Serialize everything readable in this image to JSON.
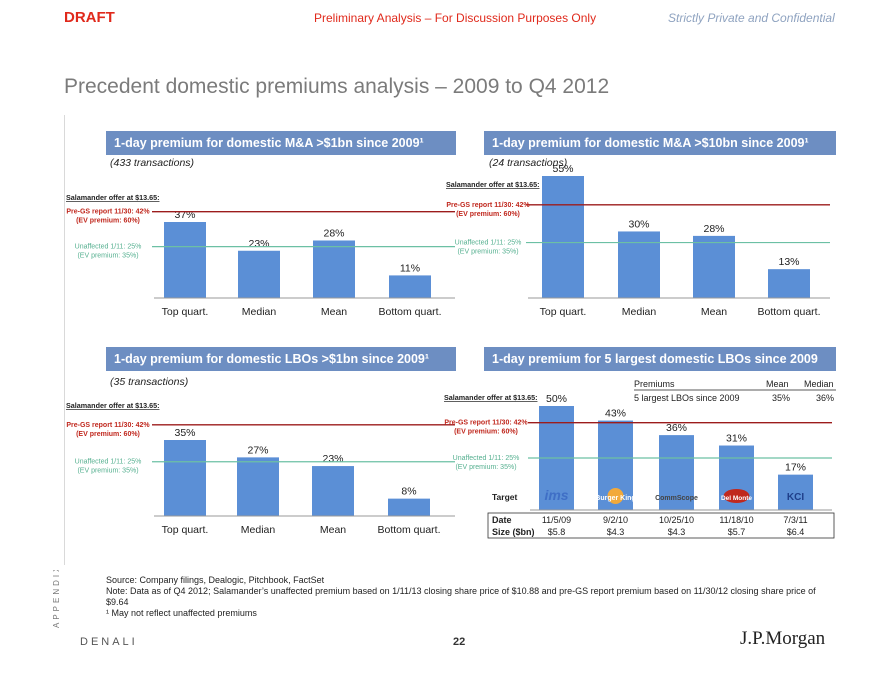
{
  "header": {
    "draft": "DRAFT",
    "prelim": "Preliminary Analysis – For Discussion Purposes Only",
    "confidential": "Strictly Private and Confidential"
  },
  "page_title": "Precedent domestic premiums analysis – 2009 to Q4 2012",
  "ref_labels": {
    "offer": "Salamander offer at $13.65:",
    "pre_gs_1": "Pre-GS report 11/30: 42%",
    "pre_gs_2": "(EV premium: 60%)",
    "unaff_1": "Unaffected 1/11: 25%",
    "unaff_2": "(EV premium: 35%)"
  },
  "colors": {
    "bar": "#5b8fd6",
    "title_bg": "#6d8ec2",
    "red_line": "#9c1c1c",
    "green_line": "#6cc0a4"
  },
  "chart_data": [
    {
      "type": "bar",
      "title": "1-day premium for domestic M&A >$1bn since 2009¹",
      "subtitle": "(433 transactions)",
      "categories": [
        "Top quart.",
        "Median",
        "Mean",
        "Bottom quart."
      ],
      "values": [
        37,
        23,
        28,
        11
      ],
      "labels": [
        "37%",
        "23%",
        "28%",
        "11%"
      ],
      "ref_lines": [
        42,
        25
      ],
      "ylim": [
        0,
        40
      ]
    },
    {
      "type": "bar",
      "title": "1-day premium for domestic M&A >$10bn since 2009¹",
      "subtitle": "(24 transactions)",
      "categories": [
        "Top quart.",
        "Median",
        "Mean",
        "Bottom quart."
      ],
      "values": [
        55,
        30,
        28,
        13
      ],
      "labels": [
        "55%",
        "30%",
        "28%",
        "13%"
      ],
      "ref_lines": [
        42,
        25
      ],
      "ylim": [
        0,
        55
      ]
    },
    {
      "type": "bar",
      "title": "1-day premium for domestic LBOs >$1bn since 2009¹",
      "subtitle": "(35 transactions)",
      "categories": [
        "Top quart.",
        "Median",
        "Mean",
        "Bottom quart."
      ],
      "values": [
        35,
        27,
        23,
        8
      ],
      "labels": [
        "35%",
        "27%",
        "23%",
        "8%"
      ],
      "ref_lines": [
        42,
        25
      ],
      "ylim": [
        0,
        45
      ]
    },
    {
      "type": "bar",
      "title": "1-day premium for 5 largest domestic LBOs since 2009",
      "categories": [
        "ims",
        "Burger King",
        "CommScope",
        "Del Monte",
        "KCI"
      ],
      "values": [
        50,
        43,
        36,
        31,
        17
      ],
      "labels": [
        "50%",
        "43%",
        "36%",
        "31%",
        "17%"
      ],
      "ref_lines": [
        42,
        25
      ],
      "ylim": [
        0,
        52
      ],
      "summary": {
        "header": [
          "Premiums",
          "Mean",
          "Median"
        ],
        "row": [
          "5 largest LBOs since 2009",
          "35%",
          "36%"
        ]
      },
      "table": {
        "target_label": "Target",
        "date_label": "Date",
        "size_label": "Size ($bn)",
        "dates": [
          "11/5/09",
          "9/2/10",
          "10/25/10",
          "11/18/10",
          "7/3/11"
        ],
        "sizes": [
          "$5.8",
          "$4.3",
          "$4.3",
          "$5.7",
          "$6.4"
        ]
      }
    }
  ],
  "footnotes": {
    "source": "Source: Company filings, Dealogic, Pitchbook, FactSet",
    "note": "Note: Data as of Q4 2012; Salamander’s unaffected premium based on 1/11/13 closing share price of $10.88 and pre-GS report premium based on 11/30/12 closing share price of $9.64",
    "fn1": "¹ May not reflect unaffected premiums"
  },
  "footer": {
    "appendix": "APPENDIX",
    "denali": "DENALI",
    "page": "22",
    "brand": "J.P.Morgan"
  }
}
